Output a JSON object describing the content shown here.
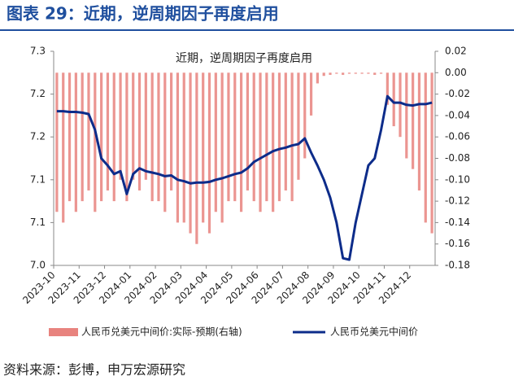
{
  "chart_data": {
    "type": "combo",
    "title": "图表 29：近期，逆周期因子再度启用",
    "subtitle": "近期，逆周期因子再度启用",
    "source": "资料来源：彭博，申万宏源研究",
    "xticks": [
      "2023-10",
      "2023-11",
      "2023-12",
      "2024-01",
      "2024-02",
      "2024-03",
      "2024-04",
      "2024-05",
      "2024-06",
      "2024-07",
      "2024-08",
      "2024-09",
      "2024-10",
      "2024-11",
      "2024-12"
    ],
    "ylim": [
      7.0,
      7.3
    ],
    "yticks": [
      7.3,
      {
        "value": 7.24,
        "label": "7.2"
      },
      {
        "value": 7.18,
        "label": "7.2"
      },
      {
        "value": 7.12,
        "label": "7.1"
      },
      {
        "value": 7.06,
        "label": "7.1"
      },
      {
        "value": 7.0,
        "label": "7.0"
      }
    ],
    "y2lim": [
      -0.18,
      0.02
    ],
    "y2ticks": [
      0.02,
      {
        "value": 0,
        "label": "0.00"
      },
      -0.02,
      -0.04,
      -0.06,
      -0.08,
      {
        "value": -0.1,
        "label": "-0.10"
      },
      -0.12,
      -0.14,
      -0.16,
      -0.18
    ],
    "series": [
      {
        "name": "人民币兑美元中间价:实际-预期(右轴)",
        "type": "bar",
        "axis": "y2",
        "color": "#e8837e",
        "values": [
          -0.13,
          -0.14,
          -0.12,
          -0.13,
          -0.12,
          -0.11,
          -0.13,
          -0.12,
          -0.11,
          -0.12,
          -0.1,
          -0.12,
          -0.1,
          -0.11,
          -0.1,
          -0.12,
          -0.12,
          -0.13,
          -0.11,
          -0.14,
          -0.14,
          -0.15,
          -0.16,
          -0.14,
          -0.15,
          -0.13,
          -0.14,
          -0.12,
          -0.12,
          -0.13,
          -0.11,
          -0.12,
          -0.13,
          -0.12,
          -0.13,
          -0.12,
          -0.11,
          -0.12,
          -0.1,
          -0.08,
          -0.04,
          -0.01,
          -0.003,
          -0.002,
          -0.001,
          -0.002,
          -0.001,
          -0.001,
          -0.001,
          -0.001,
          -0.002,
          -0.001,
          -0.03,
          -0.05,
          -0.06,
          -0.08,
          -0.09,
          -0.11,
          -0.14,
          -0.15
        ]
      },
      {
        "name": "人民币兑美元中间价",
        "type": "line",
        "color": "#0d2c8a",
        "values": [
          7.216,
          7.216,
          7.215,
          7.215,
          7.214,
          7.212,
          7.19,
          7.15,
          7.14,
          7.128,
          7.132,
          7.1,
          7.128,
          7.136,
          7.132,
          7.13,
          7.128,
          7.125,
          7.126,
          7.12,
          7.118,
          7.115,
          7.116,
          7.116,
          7.117,
          7.12,
          7.122,
          7.125,
          7.128,
          7.13,
          7.136,
          7.145,
          7.15,
          7.155,
          7.16,
          7.163,
          7.165,
          7.168,
          7.17,
          7.178,
          7.158,
          7.14,
          7.12,
          7.095,
          7.06,
          7.01,
          7.008,
          7.06,
          7.1,
          7.14,
          7.15,
          7.19,
          7.237,
          7.228,
          7.228,
          7.225,
          7.224,
          7.226,
          7.226,
          7.228
        ]
      }
    ]
  }
}
